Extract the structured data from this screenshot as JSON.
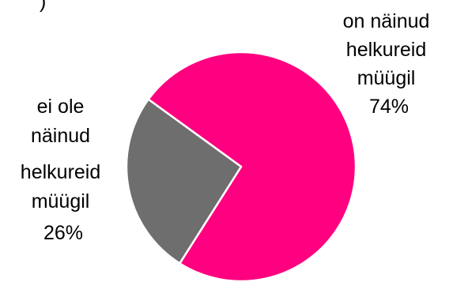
{
  "chart_data": {
    "type": "pie",
    "slices": [
      {
        "label_lines": [
          "on näinud",
          "helkureid",
          "müügil"
        ],
        "percent_label": "74%",
        "value": 74,
        "color": "#ff0080"
      },
      {
        "label_lines": [
          "ei ole",
          "näinud",
          "helkureid",
          "müügil"
        ],
        "percent_label": "26%",
        "value": 26,
        "color": "#6e6e6e"
      }
    ],
    "slice_border_color": "#ffffff",
    "legend": "none"
  },
  "clipped_top_text": ")"
}
